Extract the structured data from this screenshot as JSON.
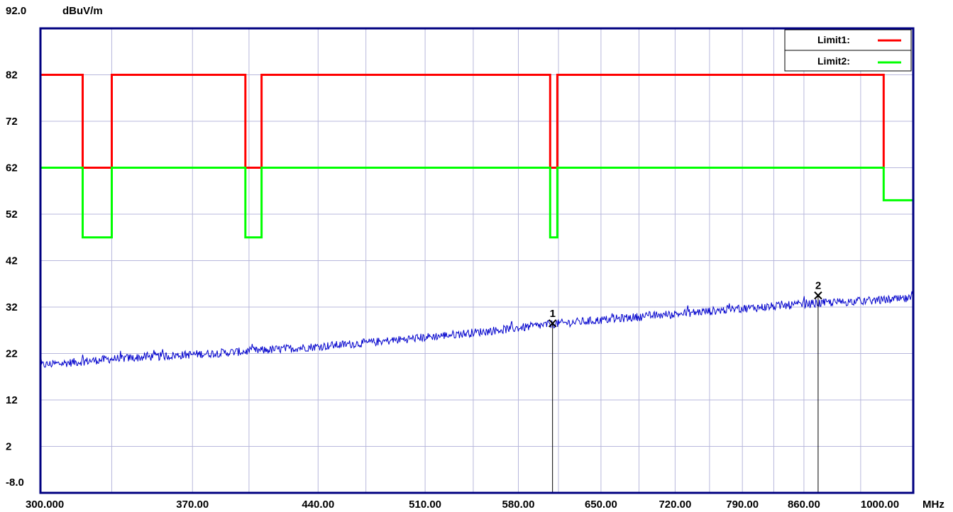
{
  "chart_data": {
    "type": "line",
    "x_unit": "MHz",
    "y_unit": "dBuV/m",
    "xlim": [
      300,
      1000
    ],
    "ylim": [
      -8,
      92
    ],
    "x_scale": "log",
    "x_ticks": [
      {
        "value": 300,
        "label": "300.000"
      },
      {
        "value": 370,
        "label": "370.00"
      },
      {
        "value": 440,
        "label": "440.00"
      },
      {
        "value": 510,
        "label": "510.00"
      },
      {
        "value": 580,
        "label": "580.00"
      },
      {
        "value": 650,
        "label": "650.00"
      },
      {
        "value": 720,
        "label": "720.00"
      },
      {
        "value": 790,
        "label": "790.00"
      },
      {
        "value": 860,
        "label": "860.00"
      },
      {
        "value": 1000,
        "label": "1000.00"
      }
    ],
    "x_gridlines": [
      300,
      331,
      370,
      400,
      440,
      470,
      510,
      545,
      580,
      613,
      650,
      685,
      720,
      755,
      790,
      825,
      860,
      930,
      1000
    ],
    "y_ticks": [
      {
        "value": 92,
        "label": "92.0"
      },
      {
        "value": 82,
        "label": "82"
      },
      {
        "value": 72,
        "label": "72"
      },
      {
        "value": 62,
        "label": "62"
      },
      {
        "value": 52,
        "label": "52"
      },
      {
        "value": 42,
        "label": "42"
      },
      {
        "value": 32,
        "label": "32"
      },
      {
        "value": 22,
        "label": "22"
      },
      {
        "value": 12,
        "label": "12"
      },
      {
        "value": 2,
        "label": "2"
      },
      {
        "value": -8,
        "label": "-8.0"
      }
    ],
    "grid": true,
    "legend_position": "top-right",
    "series": [
      {
        "name": "Limit1:",
        "color": "#ff0000",
        "points": [
          [
            300,
            82
          ],
          [
            318,
            82
          ],
          [
            318,
            62
          ],
          [
            331,
            62
          ],
          [
            331,
            82
          ],
          [
            398,
            82
          ],
          [
            398,
            62
          ],
          [
            407,
            62
          ],
          [
            407,
            82
          ],
          [
            606,
            82
          ],
          [
            606,
            62
          ],
          [
            612,
            62
          ],
          [
            612,
            82
          ],
          [
            960,
            82
          ],
          [
            960,
            62
          ]
        ]
      },
      {
        "name": "Limit2:",
        "color": "#00ff00",
        "points": [
          [
            300,
            62
          ],
          [
            318,
            62
          ],
          [
            318,
            47
          ],
          [
            331,
            47
          ],
          [
            331,
            62
          ],
          [
            398,
            62
          ],
          [
            398,
            47
          ],
          [
            407,
            47
          ],
          [
            407,
            62
          ],
          [
            606,
            62
          ],
          [
            606,
            47
          ],
          [
            612,
            47
          ],
          [
            612,
            62
          ],
          [
            960,
            62
          ],
          [
            960,
            55
          ],
          [
            1000,
            55
          ]
        ]
      },
      {
        "name": "",
        "color": "#0000cc",
        "trend": [
          [
            300,
            19.5
          ],
          [
            330,
            20.8
          ],
          [
            370,
            21.8
          ],
          [
            400,
            22.5
          ],
          [
            440,
            23.5
          ],
          [
            470,
            24.3
          ],
          [
            510,
            25.5
          ],
          [
            545,
            26.5
          ],
          [
            580,
            27.5
          ],
          [
            610,
            28.4
          ],
          [
            650,
            29.2
          ],
          [
            690,
            30.0
          ],
          [
            720,
            30.5
          ],
          [
            760,
            31.2
          ],
          [
            790,
            31.7
          ],
          [
            830,
            32.2
          ],
          [
            875,
            32.8
          ],
          [
            930,
            33.3
          ],
          [
            1000,
            33.8
          ]
        ],
        "noise_amplitude": 0.9
      }
    ],
    "markers": [
      {
        "label": "1",
        "x": 608,
        "y": 28.5
      },
      {
        "label": "2",
        "x": 877,
        "y": 34.5
      }
    ]
  }
}
